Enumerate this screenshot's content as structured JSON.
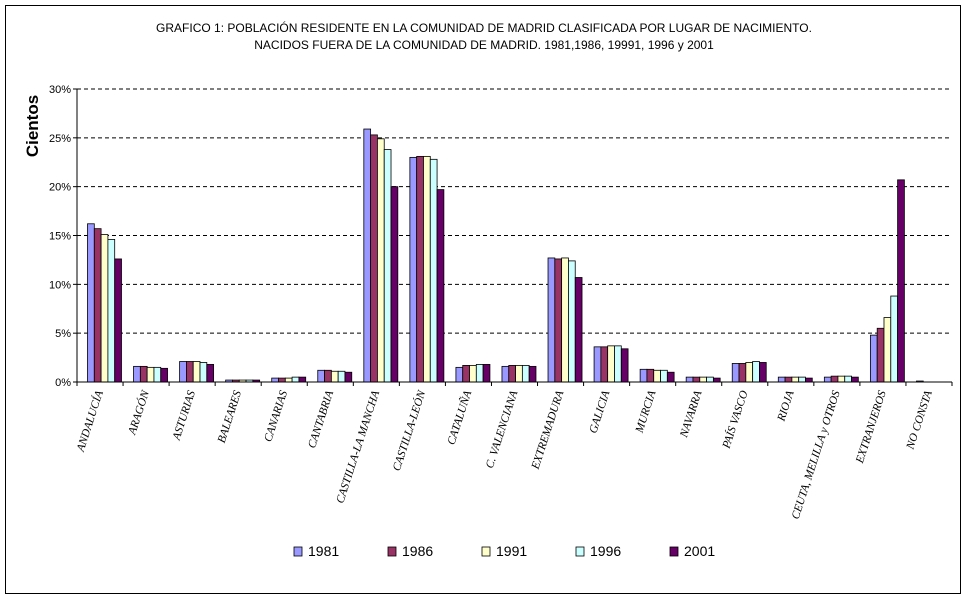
{
  "chart_data": {
    "type": "bar",
    "title": "GRAFICO 1: POBLACIÓN RESIDENTE EN LA COMUNIDAD DE MADRID CLASIFICADA POR LUGAR DE NACIMIENTO.",
    "subtitle": "NACIDOS FUERA DE LA COMUNIDAD DE MADRID. 1981,1986, 19991, 1996 y 2001",
    "xlabel": "",
    "ylabel": "Cientos",
    "ylim": [
      0,
      30
    ],
    "yticks": [
      "0%",
      "5%",
      "10%",
      "15%",
      "20%",
      "25%",
      "30%"
    ],
    "grid": "horizontal-dashed",
    "legend_position": "bottom",
    "categories": [
      "ANDALUCÍA",
      "ARAGÓN",
      "ASTURIAS",
      "BALEARES",
      "CANARIAS",
      "CANTABRIA",
      "CASTILLA-LA MANCHA",
      "CASTILLA-LEÓN",
      "CATALUÑA",
      "C. VALENCIANA",
      "EXTREMADURA",
      "GALICIA",
      "MURCIA",
      "NAVARRA",
      "PAÍS VASCO",
      "RIOJA",
      "CEUTA, MELILLA y OTROS",
      "EXTRANJEROS",
      "NO CONSTA"
    ],
    "series": [
      {
        "name": "1981",
        "color": "#9999ff",
        "values": [
          16.2,
          1.6,
          2.1,
          0.2,
          0.4,
          1.2,
          25.9,
          23.0,
          1.5,
          1.6,
          12.7,
          3.6,
          1.3,
          0.5,
          1.9,
          0.5,
          0.5,
          4.8,
          0.1
        ]
      },
      {
        "name": "1986",
        "color": "#993366",
        "values": [
          15.7,
          1.6,
          2.1,
          0.2,
          0.4,
          1.2,
          25.3,
          23.1,
          1.7,
          1.7,
          12.6,
          3.6,
          1.3,
          0.5,
          1.9,
          0.5,
          0.6,
          5.5,
          0.0
        ]
      },
      {
        "name": "1991",
        "color": "#ffffcc",
        "values": [
          15.1,
          1.5,
          2.1,
          0.2,
          0.4,
          1.1,
          24.9,
          23.1,
          1.7,
          1.7,
          12.7,
          3.7,
          1.2,
          0.5,
          2.0,
          0.5,
          0.6,
          6.6,
          0.0
        ]
      },
      {
        "name": "1996",
        "color": "#ccffff",
        "values": [
          14.6,
          1.5,
          2.0,
          0.2,
          0.5,
          1.1,
          23.8,
          22.8,
          1.8,
          1.7,
          12.4,
          3.7,
          1.2,
          0.5,
          2.1,
          0.5,
          0.6,
          8.8,
          0.0
        ]
      },
      {
        "name": "2001",
        "color": "#660066",
        "values": [
          12.6,
          1.4,
          1.8,
          0.2,
          0.5,
          1.0,
          20.0,
          19.7,
          1.8,
          1.6,
          10.7,
          3.4,
          1.0,
          0.4,
          2.0,
          0.4,
          0.5,
          20.7,
          0.0
        ]
      }
    ]
  }
}
